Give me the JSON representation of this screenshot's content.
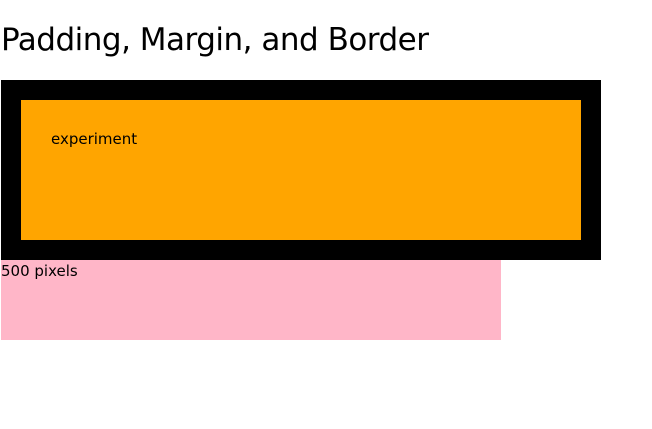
{
  "page": {
    "title": "Padding, Margin, and Border"
  },
  "boxes": {
    "experiment_label": "experiment",
    "width_label": "500 pixels"
  },
  "colors": {
    "border": "#000000",
    "content": "#ffa500",
    "reference": "#ffb6c8",
    "background": "#ffffff"
  }
}
